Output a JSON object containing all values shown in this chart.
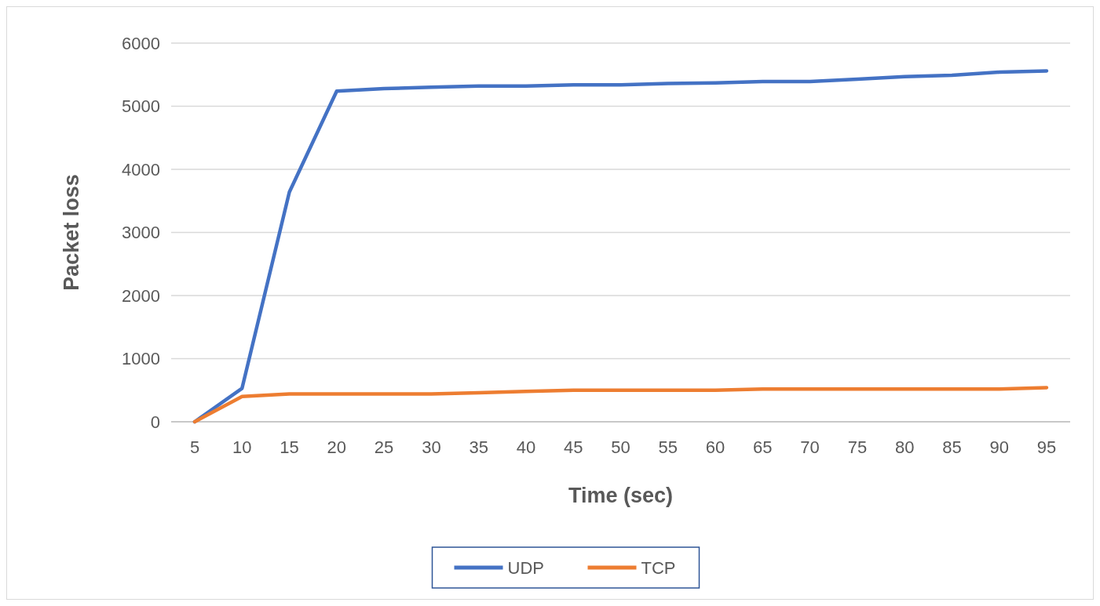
{
  "chart_data": {
    "type": "line",
    "xlabel": "Time (sec)",
    "ylabel": "Packet loss",
    "categories": [
      "5",
      "10",
      "15",
      "20",
      "25",
      "30",
      "35",
      "40",
      "45",
      "50",
      "55",
      "60",
      "65",
      "70",
      "75",
      "80",
      "85",
      "90",
      "95"
    ],
    "series": [
      {
        "name": "UDP",
        "color": "#4472c4",
        "values": [
          0,
          530,
          3640,
          5240,
          5280,
          5300,
          5320,
          5320,
          5340,
          5340,
          5360,
          5370,
          5390,
          5390,
          5430,
          5470,
          5490,
          5540,
          5560
        ]
      },
      {
        "name": "TCP",
        "color": "#ed7d31",
        "values": [
          0,
          400,
          440,
          440,
          440,
          440,
          460,
          480,
          500,
          500,
          500,
          500,
          520,
          520,
          520,
          520,
          520,
          520,
          540
        ]
      }
    ],
    "ylim": [
      0,
      6000
    ],
    "yticks": [
      0,
      1000,
      2000,
      3000,
      4000,
      5000,
      6000
    ],
    "grid": "y",
    "legend": "bottom",
    "marker": "none",
    "line_style": "solid"
  }
}
